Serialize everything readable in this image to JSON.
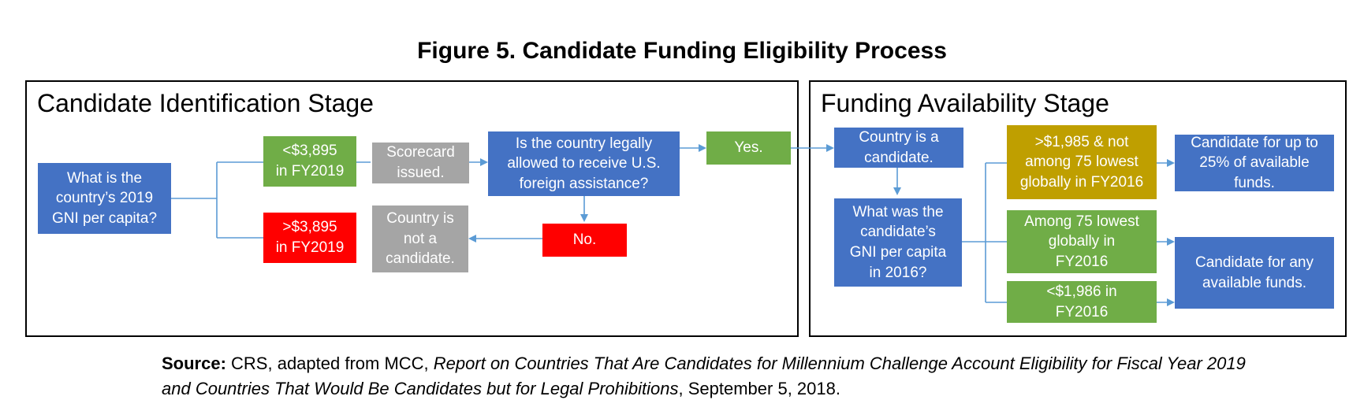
{
  "title": "Figure 5. Candidate Funding Eligibility Process",
  "colors": {
    "blue": "#4472c4",
    "green": "#70ad47",
    "red": "#ff0000",
    "gray": "#a5a5a5",
    "gold": "#bf9f00",
    "connector": "#5b9bd5"
  },
  "stage1": {
    "title": "Candidate Identification Stage",
    "boxes": {
      "gni_question": "What is the\ncountry’s 2019\nGNI per capita?",
      "below_threshold": "<$3,895\nin FY2019",
      "above_threshold": ">$3,895\nin FY2019",
      "scorecard": "Scorecard\nissued.",
      "legal_question": "Is the country legally\nallowed to receive U.S.\nforeign assistance?",
      "yes": "Yes.",
      "no": "No.",
      "not_candidate": "Country is\nnot a\ncandidate."
    }
  },
  "stage2": {
    "title": "Funding Availability Stage",
    "boxes": {
      "is_candidate": "Country is a\ncandidate.",
      "gni2016_question": "What was the\ncandidate’s\nGNI per capita\nin 2016?",
      "over_1985": ">$1,985 & not\namong 75 lowest\nglobally in FY2016",
      "lowest_75": "Among 75 lowest\nglobally in\nFY2016",
      "under_1986": "<$1,986 in\nFY2016",
      "up_to_25": "Candidate for up to\n25% of available\nfunds.",
      "any_funds": "Candidate for any\navailable funds."
    }
  },
  "source": {
    "label": "Source:",
    "prefix": " CRS, adapted from MCC, ",
    "report_title": "Report on Countries That Are Candidates for Millennium Challenge Account Eligibility for Fiscal Year 2019 and Countries That Would Be Candidates but for Legal Prohibitions",
    "suffix": ", September 5, 2018."
  }
}
